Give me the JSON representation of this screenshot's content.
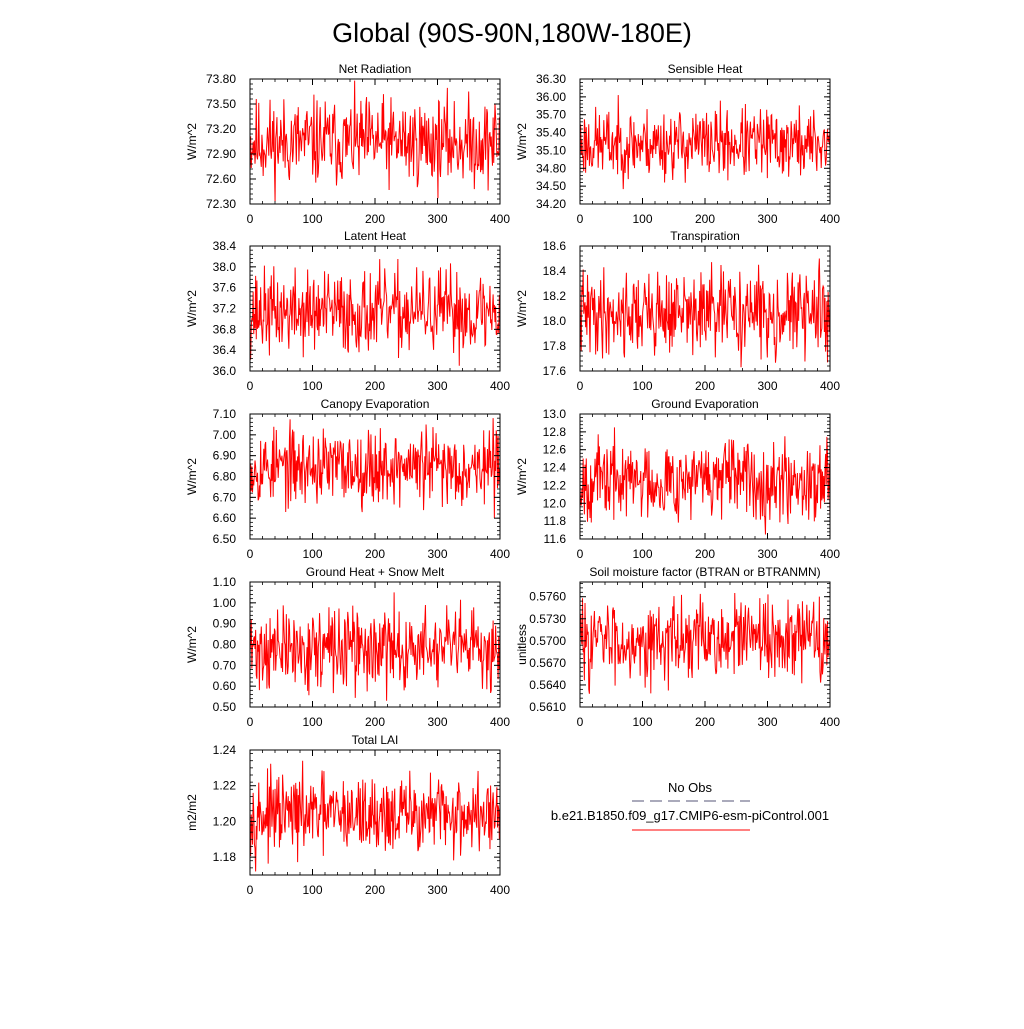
{
  "title": "Global (90S-90N,180W-180E)",
  "colors": {
    "series": "#ff0000",
    "obs": "#555577",
    "axis": "#000000"
  },
  "legend": {
    "obs_label": "No Obs",
    "model_label": "b.e21.B1850.f09_g17.CMIP6-esm-piControl.001"
  },
  "chart_data": [
    {
      "type": "line",
      "title": "Net Radiation",
      "ylabel": "W/m^2",
      "xlabel": "",
      "xlim": [
        0,
        400
      ],
      "xticks": [
        "0",
        "100",
        "200",
        "300",
        "400"
      ],
      "ylim": [
        72.3,
        73.8
      ],
      "yticks": [
        "72.30",
        "72.60",
        "72.90",
        "73.20",
        "73.50",
        "73.80"
      ],
      "n_points": 400,
      "mean": 73.0,
      "amp": 0.22,
      "min_value": 72.33,
      "max_value": 73.78,
      "seed": 11,
      "series": [
        {
          "name": "b.e21.B1850.f09_g17.CMIP6-esm-piControl.001"
        }
      ]
    },
    {
      "type": "line",
      "title": "Sensible Heat",
      "ylabel": "W/m^2",
      "xlabel": "",
      "xlim": [
        0,
        400
      ],
      "xticks": [
        "0",
        "100",
        "200",
        "300",
        "400"
      ],
      "ylim": [
        34.2,
        36.3
      ],
      "yticks": [
        "34.20",
        "34.50",
        "34.80",
        "35.10",
        "35.40",
        "35.70",
        "36.00",
        "36.30"
      ],
      "n_points": 400,
      "mean": 35.3,
      "amp": 0.22,
      "min_value": 34.45,
      "max_value": 36.03,
      "seed": 23,
      "series": [
        {
          "name": "b.e21.B1850.f09_g17.CMIP6-esm-piControl.001"
        }
      ]
    },
    {
      "type": "line",
      "title": "Latent Heat",
      "ylabel": "W/m^2",
      "xlabel": "",
      "xlim": [
        0,
        400
      ],
      "xticks": [
        "0",
        "100",
        "200",
        "300",
        "400"
      ],
      "ylim": [
        36.0,
        38.4
      ],
      "yticks": [
        "36.0",
        "36.4",
        "36.8",
        "37.2",
        "37.6",
        "38.0",
        "38.4"
      ],
      "n_points": 400,
      "mean": 37.05,
      "amp": 0.28,
      "min_value": 36.1,
      "max_value": 38.15,
      "seed": 37,
      "series": [
        {
          "name": "b.e21.B1850.f09_g17.CMIP6-esm-piControl.001"
        }
      ]
    },
    {
      "type": "line",
      "title": "Transpiration",
      "ylabel": "W/m^2",
      "xlabel": "",
      "xlim": [
        0,
        400
      ],
      "xticks": [
        "0",
        "100",
        "200",
        "300",
        "400"
      ],
      "ylim": [
        17.6,
        18.6
      ],
      "yticks": [
        "17.6",
        "17.8",
        "18.0",
        "18.2",
        "18.4",
        "18.6"
      ],
      "n_points": 400,
      "mean": 18.12,
      "amp": 0.13,
      "min_value": 17.63,
      "max_value": 18.5,
      "seed": 41,
      "series": [
        {
          "name": "b.e21.B1850.f09_g17.CMIP6-esm-piControl.001"
        }
      ]
    },
    {
      "type": "line",
      "title": "Canopy Evaporation",
      "ylabel": "W/m^2",
      "xlabel": "",
      "xlim": [
        0,
        400
      ],
      "xticks": [
        "0",
        "100",
        "200",
        "300",
        "400"
      ],
      "ylim": [
        6.5,
        7.1
      ],
      "yticks": [
        "6.50",
        "6.60",
        "6.70",
        "6.80",
        "6.90",
        "7.00",
        "7.10"
      ],
      "n_points": 400,
      "mean": 6.86,
      "amp": 0.08,
      "min_value": 6.6,
      "max_value": 7.08,
      "seed": 53,
      "series": [
        {
          "name": "b.e21.B1850.f09_g17.CMIP6-esm-piControl.001"
        }
      ]
    },
    {
      "type": "line",
      "title": "Ground Evaporation",
      "ylabel": "W/m^2",
      "xlabel": "",
      "xlim": [
        0,
        400
      ],
      "xticks": [
        "0",
        "100",
        "200",
        "300",
        "400"
      ],
      "ylim": [
        11.6,
        13.0
      ],
      "yticks": [
        "11.6",
        "11.8",
        "12.0",
        "12.2",
        "12.4",
        "12.6",
        "12.8",
        "13.0"
      ],
      "n_points": 400,
      "mean": 12.08,
      "amp": 0.17,
      "min_value": 11.65,
      "max_value": 12.85,
      "seed": 67,
      "series": [
        {
          "name": "b.e21.B1850.f09_g17.CMIP6-esm-piControl.001"
        }
      ]
    },
    {
      "type": "line",
      "title": "Ground Heat + Snow Melt",
      "ylabel": "W/m^2",
      "xlabel": "",
      "xlim": [
        0,
        400
      ],
      "xticks": [
        "0",
        "100",
        "200",
        "300",
        "400"
      ],
      "ylim": [
        0.5,
        1.1
      ],
      "yticks": [
        "0.50",
        "0.60",
        "0.70",
        "0.80",
        "0.90",
        "1.00",
        "1.10"
      ],
      "n_points": 400,
      "mean": 0.78,
      "amp": 0.09,
      "min_value": 0.53,
      "max_value": 1.05,
      "seed": 71,
      "series": [
        {
          "name": "b.e21.B1850.f09_g17.CMIP6-esm-piControl.001"
        }
      ]
    },
    {
      "type": "line",
      "title": "Soil moisture factor (BTRAN or BTRANMN)",
      "ylabel": "unitless",
      "xlabel": "",
      "xlim": [
        0,
        400
      ],
      "xticks": [
        "0",
        "100",
        "200",
        "300",
        "400"
      ],
      "ylim": [
        0.561,
        0.578
      ],
      "yticks": [
        "0.5610",
        "0.5640",
        "0.5670",
        "0.5700",
        "0.5730",
        "0.5760"
      ],
      "n_points": 400,
      "mean": 0.5693,
      "amp": 0.0022,
      "min_value": 0.5628,
      "max_value": 0.5765,
      "seed": 83,
      "series": [
        {
          "name": "b.e21.B1850.f09_g17.CMIP6-esm-piControl.001"
        }
      ]
    },
    {
      "type": "line",
      "title": "Total LAI",
      "ylabel": "m2/m2",
      "xlabel": "",
      "xlim": [
        0,
        400
      ],
      "xticks": [
        "0",
        "100",
        "200",
        "300",
        "400"
      ],
      "ylim": [
        1.17,
        1.24
      ],
      "yticks": [
        "1.18",
        "1.20",
        "1.22",
        "1.24"
      ],
      "n_points": 400,
      "mean": 1.203,
      "amp": 0.008,
      "min_value": 1.172,
      "max_value": 1.234,
      "seed": 97,
      "series": [
        {
          "name": "b.e21.B1850.f09_g17.CMIP6-esm-piControl.001"
        }
      ]
    }
  ]
}
